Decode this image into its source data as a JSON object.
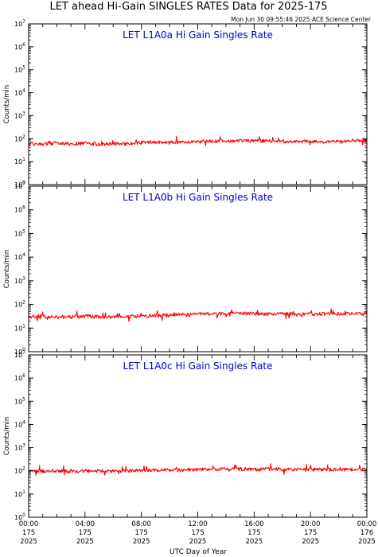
{
  "page": {
    "title": "LET ahead Hi-Gain SINGLES RATES Data for 2025-175",
    "timestamp": "Mon Jun 30 09:55:46 2025 ACE Science Center",
    "xlabel": "UTC Day of Year"
  },
  "colors": {
    "series": "#ff0000",
    "panel_title": "#0000cc",
    "axes": "#000000"
  },
  "chart_data": [
    {
      "type": "line",
      "title": "LET L1A0a Hi Gain Singles Rate",
      "ylabel": "Counts/min",
      "yscale": "log",
      "ylim": [
        1,
        10000000
      ],
      "yticks": [
        {
          "value": 1,
          "base": "10",
          "exp": "0"
        },
        {
          "value": 10,
          "base": "10",
          "exp": "1"
        },
        {
          "value": 100,
          "base": "10",
          "exp": "2"
        },
        {
          "value": 1000,
          "base": "10",
          "exp": "3"
        },
        {
          "value": 10000,
          "base": "10",
          "exp": "4"
        },
        {
          "value": 100000,
          "base": "10",
          "exp": "5"
        },
        {
          "value": 1000000,
          "base": "10",
          "exp": "6"
        },
        {
          "value": 10000000,
          "base": "10",
          "exp": "7"
        }
      ],
      "xlim": [
        0,
        24
      ],
      "xunit": "hour of day",
      "series": [
        {
          "x": [
            0,
            1,
            2,
            3,
            4,
            5,
            6,
            7,
            8,
            9,
            10,
            11,
            12,
            13,
            14,
            15,
            16,
            17,
            18,
            19,
            20,
            21,
            22,
            23,
            24
          ],
          "y": [
            62,
            58,
            66,
            60,
            64,
            57,
            63,
            60,
            68,
            72,
            70,
            74,
            76,
            78,
            80,
            82,
            79,
            81,
            78,
            76,
            77,
            74,
            75,
            78,
            80
          ]
        }
      ]
    },
    {
      "type": "line",
      "title": "LET L1A0b Hi Gain Singles Rate",
      "ylabel": "Counts/min",
      "yscale": "log",
      "ylim": [
        1,
        10000000
      ],
      "yticks": [
        {
          "value": 1,
          "base": "10",
          "exp": "0"
        },
        {
          "value": 10,
          "base": "10",
          "exp": "1"
        },
        {
          "value": 100,
          "base": "10",
          "exp": "2"
        },
        {
          "value": 1000,
          "base": "10",
          "exp": "3"
        },
        {
          "value": 10000,
          "base": "10",
          "exp": "4"
        },
        {
          "value": 100000,
          "base": "10",
          "exp": "5"
        },
        {
          "value": 1000000,
          "base": "10",
          "exp": "6"
        },
        {
          "value": 10000000,
          "base": "10",
          "exp": "7"
        }
      ],
      "xlim": [
        0,
        24
      ],
      "xunit": "hour of day",
      "series": [
        {
          "x": [
            0,
            1,
            2,
            3,
            4,
            5,
            6,
            7,
            8,
            9,
            10,
            11,
            12,
            13,
            14,
            15,
            16,
            17,
            18,
            19,
            20,
            21,
            22,
            23,
            24
          ],
          "y": [
            30,
            31,
            29,
            30,
            32,
            30,
            29,
            31,
            32,
            34,
            35,
            38,
            39,
            40,
            41,
            42,
            41,
            40,
            41,
            40,
            39,
            40,
            40,
            41,
            42
          ]
        }
      ]
    },
    {
      "type": "line",
      "title": "LET L1A0c Hi Gain Singles Rate",
      "ylabel": "Counts/min",
      "yscale": "log",
      "ylim": [
        1,
        10000000
      ],
      "yticks": [
        {
          "value": 1,
          "base": "10",
          "exp": "0"
        },
        {
          "value": 10,
          "base": "10",
          "exp": "1"
        },
        {
          "value": 100,
          "base": "10",
          "exp": "2"
        },
        {
          "value": 1000,
          "base": "10",
          "exp": "3"
        },
        {
          "value": 10000,
          "base": "10",
          "exp": "4"
        },
        {
          "value": 100000,
          "base": "10",
          "exp": "5"
        },
        {
          "value": 1000000,
          "base": "10",
          "exp": "6"
        },
        {
          "value": 10000000,
          "base": "10",
          "exp": "7"
        }
      ],
      "xlim": [
        0,
        24
      ],
      "xunit": "hour of day",
      "xticks": [
        {
          "value": 0,
          "time": "00:00",
          "doy": "175",
          "year": "2025"
        },
        {
          "value": 4,
          "time": "04:00",
          "doy": "175",
          "year": "2025"
        },
        {
          "value": 8,
          "time": "08:00",
          "doy": "175",
          "year": "2025"
        },
        {
          "value": 12,
          "time": "12:00",
          "doy": "175",
          "year": "2025"
        },
        {
          "value": 16,
          "time": "16:00",
          "doy": "175",
          "year": "2025"
        },
        {
          "value": 20,
          "time": "20:00",
          "doy": "175",
          "year": "2025"
        },
        {
          "value": 24,
          "time": "00:00",
          "doy": "176",
          "year": "2025"
        }
      ],
      "series": [
        {
          "x": [
            0,
            1,
            2,
            3,
            4,
            5,
            6,
            7,
            8,
            9,
            10,
            11,
            12,
            13,
            14,
            15,
            16,
            17,
            18,
            19,
            20,
            21,
            22,
            23,
            24
          ],
          "y": [
            100,
            98,
            102,
            97,
            100,
            99,
            96,
            100,
            104,
            108,
            110,
            112,
            115,
            118,
            120,
            122,
            119,
            121,
            118,
            117,
            116,
            115,
            114,
            116,
            118
          ]
        }
      ]
    }
  ]
}
